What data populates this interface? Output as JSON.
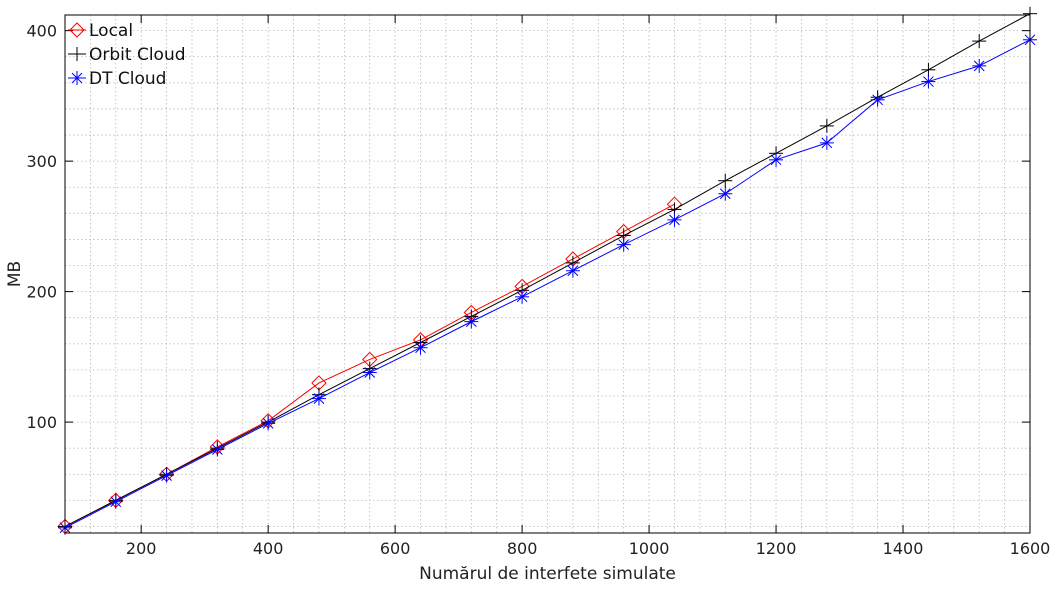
{
  "chart_data": {
    "type": "line",
    "xlabel": "Numărul de interfete simulate",
    "ylabel": "MB",
    "xlim": [
      80,
      1600
    ],
    "ylim": [
      15,
      412
    ],
    "x_ticks": [
      200,
      400,
      600,
      800,
      1000,
      1200,
      1400,
      1600
    ],
    "y_ticks": [
      100,
      200,
      300,
      400
    ],
    "x_minor_step": 40,
    "y_minor_step": 20,
    "grid": true,
    "legend_position": "top-left",
    "series": [
      {
        "name": "Local",
        "color": "#ff0000",
        "marker": "diamond",
        "x": [
          80,
          160,
          240,
          320,
          400,
          480,
          560,
          640,
          720,
          800,
          880,
          960,
          1040
        ],
        "y": [
          20,
          40,
          60,
          81,
          101,
          130,
          148,
          163,
          184,
          204,
          225,
          246,
          267
        ]
      },
      {
        "name": "Orbit Cloud",
        "color": "#000000",
        "marker": "plus",
        "x": [
          80,
          160,
          240,
          320,
          400,
          480,
          560,
          640,
          720,
          800,
          880,
          960,
          1040,
          1120,
          1200,
          1280,
          1360,
          1440,
          1520,
          1600
        ],
        "y": [
          20,
          40,
          60,
          80,
          100,
          121,
          141,
          161,
          181,
          201,
          222,
          243,
          263,
          285,
          306,
          327,
          349,
          370,
          392,
          413
        ]
      },
      {
        "name": "DT Cloud",
        "color": "#0000ff",
        "marker": "asterisk",
        "x": [
          80,
          160,
          240,
          320,
          400,
          480,
          560,
          640,
          720,
          800,
          880,
          960,
          1040,
          1120,
          1200,
          1280,
          1360,
          1440,
          1520,
          1600
        ],
        "y": [
          19,
          39,
          59,
          79,
          99,
          118,
          138,
          157,
          177,
          196,
          216,
          236,
          255,
          275,
          301,
          314,
          347,
          361,
          373,
          393
        ]
      }
    ]
  }
}
